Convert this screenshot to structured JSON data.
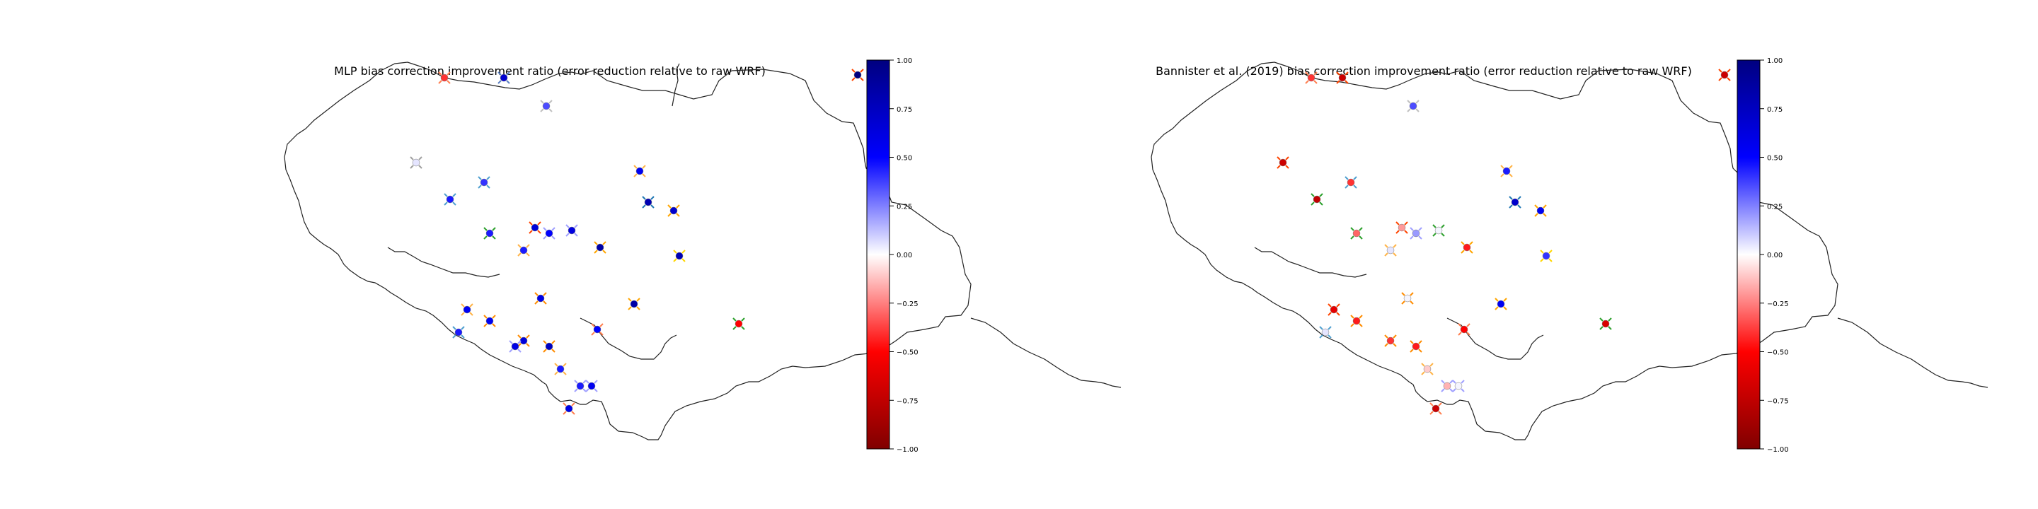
{
  "figure": {
    "colorscale": "seismic_r",
    "colormap_stops": [
      "#800000",
      "#ff0000",
      "#ffffff",
      "#0000ff",
      "#000080"
    ]
  },
  "chart_data": [
    {
      "type": "scatter",
      "title": "MLP bias correction improvement ratio (error reduction relative to raw WRF)",
      "colorbar": {
        "range": [
          -1.0,
          1.0
        ],
        "ticks": [
          "1.00",
          "0.75",
          "0.50",
          "0.25",
          "0.00",
          "−0.25",
          "−0.50",
          "−0.75",
          "−1.00"
        ]
      },
      "points": [
        {
          "lon": -0.48,
          "lat": 0.7,
          "value": -0.4,
          "ring": "#ff7f50"
        },
        {
          "lon": -0.27,
          "lat": 0.7,
          "value": 0.68,
          "ring": "#5a7fc0"
        },
        {
          "lon": -0.12,
          "lat": 0.6,
          "value": 0.35,
          "ring": "#c0c0c0"
        },
        {
          "lon": -0.58,
          "lat": 0.4,
          "value": 0.05,
          "ring": "#a0a0a0"
        },
        {
          "lon": -0.46,
          "lat": 0.27,
          "value": 0.45,
          "ring": "#4fa0d0"
        },
        {
          "lon": -0.34,
          "lat": 0.33,
          "value": 0.4,
          "ring": "#4fa0d0"
        },
        {
          "lon": 0.21,
          "lat": 0.37,
          "value": 0.55,
          "ring": "#ffb347"
        },
        {
          "lon": 0.24,
          "lat": 0.26,
          "value": 0.8,
          "ring": "#1f77b4"
        },
        {
          "lon": 0.33,
          "lat": 0.23,
          "value": 0.7,
          "ring": "#ffa500"
        },
        {
          "lon": -0.32,
          "lat": 0.15,
          "value": 0.45,
          "ring": "#2ca02c"
        },
        {
          "lon": -0.16,
          "lat": 0.17,
          "value": 0.65,
          "ring": "#ff4500"
        },
        {
          "lon": -0.11,
          "lat": 0.15,
          "value": 0.5,
          "ring": "#a0a0ff"
        },
        {
          "lon": -0.03,
          "lat": 0.16,
          "value": 0.62,
          "ring": "#a0a0ff"
        },
        {
          "lon": 0.07,
          "lat": 0.1,
          "value": 0.85,
          "ring": "#ffa500"
        },
        {
          "lon": -0.2,
          "lat": 0.09,
          "value": 0.45,
          "ring": "#ffb347"
        },
        {
          "lon": 0.35,
          "lat": 0.07,
          "value": 0.8,
          "ring": "#ffd700"
        },
        {
          "lon": -0.14,
          "lat": -0.08,
          "value": 0.6,
          "ring": "#ff8c00"
        },
        {
          "lon": 0.19,
          "lat": -0.1,
          "value": 0.85,
          "ring": "#ffa500"
        },
        {
          "lon": -0.4,
          "lat": -0.12,
          "value": 0.55,
          "ring": "#ffb347"
        },
        {
          "lon": -0.32,
          "lat": -0.16,
          "value": 0.55,
          "ring": "#ff8c00"
        },
        {
          "lon": -0.43,
          "lat": -0.2,
          "value": 0.45,
          "ring": "#4fa0d0"
        },
        {
          "lon": 0.06,
          "lat": -0.19,
          "value": 0.5,
          "ring": "#ff7f50"
        },
        {
          "lon": -0.2,
          "lat": -0.23,
          "value": 0.65,
          "ring": "#ff8c00"
        },
        {
          "lon": -0.23,
          "lat": -0.25,
          "value": 0.6,
          "ring": "#a0a0ff"
        },
        {
          "lon": -0.11,
          "lat": -0.25,
          "value": 0.75,
          "ring": "#ff8c00"
        },
        {
          "lon": 0.56,
          "lat": -0.17,
          "value": -0.5,
          "ring": "#2ca02c"
        },
        {
          "lon": -0.07,
          "lat": -0.33,
          "value": 0.45,
          "ring": "#ffb347"
        },
        {
          "lon": 0.0,
          "lat": -0.39,
          "value": 0.45,
          "ring": "#a0a0ff"
        },
        {
          "lon": 0.04,
          "lat": -0.39,
          "value": 0.55,
          "ring": "#a0a0ff"
        },
        {
          "lon": -0.04,
          "lat": -0.47,
          "value": 0.6,
          "ring": "#ff7f50"
        },
        {
          "lon": 0.98,
          "lat": 0.71,
          "value": 1.0,
          "ring": "#ff4500"
        },
        {
          "lon": 1.05,
          "lat": -0.05,
          "value": 0.95,
          "ring": "#2ca02c"
        }
      ]
    },
    {
      "type": "scatter",
      "title": "Bannister et al. (2019) bias correction improvement ratio (error reduction relative to raw WRF)",
      "colorbar": {
        "range": [
          -1.0,
          1.0
        ],
        "ticks": [
          "1.00",
          "0.75",
          "0.50",
          "0.25",
          "0.00",
          "−0.25",
          "−0.50",
          "−0.75",
          "−1.00"
        ]
      },
      "points": [
        {
          "lon": -0.48,
          "lat": 0.7,
          "value": -0.4,
          "ring": "#ff7f50"
        },
        {
          "lon": -0.37,
          "lat": 0.7,
          "value": -0.7,
          "ring": "#ff4500"
        },
        {
          "lon": -0.12,
          "lat": 0.6,
          "value": 0.35,
          "ring": "#c0c0c0"
        },
        {
          "lon": -0.58,
          "lat": 0.4,
          "value": -0.7,
          "ring": "#ff4500"
        },
        {
          "lon": -0.46,
          "lat": 0.27,
          "value": -0.75,
          "ring": "#2ca02c"
        },
        {
          "lon": -0.34,
          "lat": 0.33,
          "value": -0.4,
          "ring": "#4fa0d0"
        },
        {
          "lon": 0.21,
          "lat": 0.37,
          "value": 0.45,
          "ring": "#ffb347"
        },
        {
          "lon": 0.24,
          "lat": 0.26,
          "value": 0.7,
          "ring": "#1f77b4"
        },
        {
          "lon": 0.33,
          "lat": 0.23,
          "value": 0.55,
          "ring": "#ffa500"
        },
        {
          "lon": -0.32,
          "lat": 0.15,
          "value": -0.3,
          "ring": "#2ca02c"
        },
        {
          "lon": -0.16,
          "lat": 0.17,
          "value": -0.2,
          "ring": "#ff4500"
        },
        {
          "lon": -0.11,
          "lat": 0.15,
          "value": 0.2,
          "ring": "#a0a0ff"
        },
        {
          "lon": -0.03,
          "lat": 0.16,
          "value": 0.02,
          "ring": "#2ca02c"
        },
        {
          "lon": 0.07,
          "lat": 0.1,
          "value": -0.45,
          "ring": "#ffa500"
        },
        {
          "lon": -0.2,
          "lat": 0.09,
          "value": 0.05,
          "ring": "#ffb347"
        },
        {
          "lon": 0.35,
          "lat": 0.07,
          "value": 0.4,
          "ring": "#ffd700"
        },
        {
          "lon": -0.14,
          "lat": -0.08,
          "value": 0.02,
          "ring": "#ff8c00"
        },
        {
          "lon": 0.19,
          "lat": -0.1,
          "value": 0.55,
          "ring": "#ffa500"
        },
        {
          "lon": -0.4,
          "lat": -0.12,
          "value": -0.6,
          "ring": "#ff4500"
        },
        {
          "lon": -0.32,
          "lat": -0.16,
          "value": -0.45,
          "ring": "#ff8c00"
        },
        {
          "lon": -0.43,
          "lat": -0.2,
          "value": 0.05,
          "ring": "#4fa0d0"
        },
        {
          "lon": 0.06,
          "lat": -0.19,
          "value": -0.5,
          "ring": "#ff7f50"
        },
        {
          "lon": -0.2,
          "lat": -0.23,
          "value": -0.4,
          "ring": "#ff8c00"
        },
        {
          "lon": -0.11,
          "lat": -0.25,
          "value": -0.45,
          "ring": "#ff8c00"
        },
        {
          "lon": 0.56,
          "lat": -0.17,
          "value": -0.65,
          "ring": "#2ca02c"
        },
        {
          "lon": -0.07,
          "lat": -0.33,
          "value": -0.1,
          "ring": "#ffb347"
        },
        {
          "lon": 0.0,
          "lat": -0.39,
          "value": -0.15,
          "ring": "#a0a0ff"
        },
        {
          "lon": 0.04,
          "lat": -0.39,
          "value": 0.02,
          "ring": "#a0a0ff"
        },
        {
          "lon": -0.04,
          "lat": -0.47,
          "value": -0.7,
          "ring": "#ff7f50"
        },
        {
          "lon": 0.98,
          "lat": 0.71,
          "value": -0.7,
          "ring": "#ff4500"
        },
        {
          "lon": 1.05,
          "lat": -0.05,
          "value": 0.45,
          "ring": "#2ca02c"
        }
      ]
    }
  ]
}
